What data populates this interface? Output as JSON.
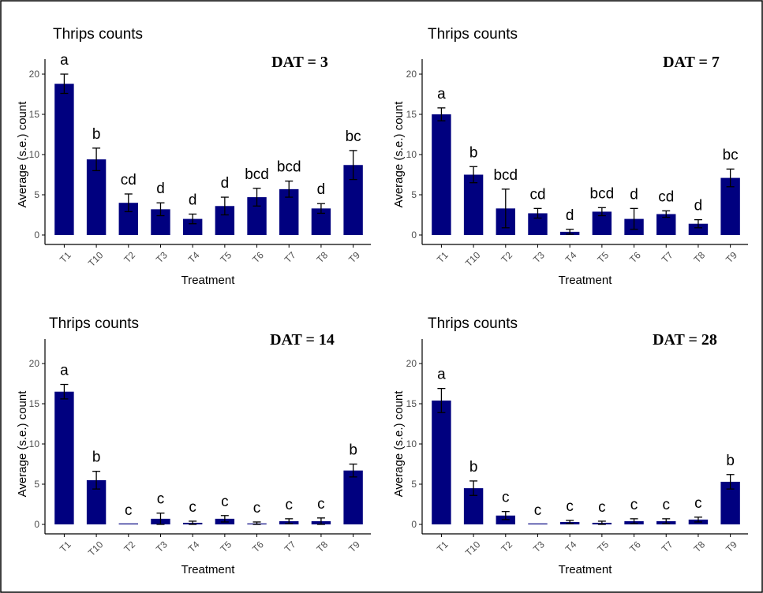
{
  "colors": {
    "bar": "#00007f",
    "axis": "#000000",
    "tick_text": "#4d4d4d",
    "frame": "#000000"
  },
  "chart_data": [
    {
      "type": "bar",
      "title": "Thrips counts",
      "panel_label": "DAT = 3",
      "xlabel": "Treatment",
      "ylabel": "Average (s.e.) count",
      "ylim": [
        0,
        22
      ],
      "yticks": [
        "0",
        "5",
        "10",
        "15",
        "20"
      ],
      "grid": false,
      "categories": [
        "T1",
        "T10",
        "T2",
        "T3",
        "T4",
        "T5",
        "T6",
        "T7",
        "T8",
        "T9"
      ],
      "values": [
        18.8,
        9.4,
        4.0,
        3.2,
        2.0,
        3.6,
        4.7,
        5.7,
        3.3,
        8.7
      ],
      "errors": [
        1.2,
        1.4,
        1.1,
        0.8,
        0.6,
        1.1,
        1.1,
        1.0,
        0.6,
        1.8
      ],
      "letters": [
        "a",
        "b",
        "cd",
        "d",
        "d",
        "d",
        "bcd",
        "bcd",
        "d",
        "bc"
      ]
    },
    {
      "type": "bar",
      "title": "Thrips counts",
      "panel_label": "DAT = 7",
      "xlabel": "Treatment",
      "ylabel": "Average (s.e.) count",
      "ylim": [
        0,
        22
      ],
      "yticks": [
        "0",
        "5",
        "10",
        "15",
        "20"
      ],
      "grid": false,
      "categories": [
        "T1",
        "T10",
        "T2",
        "T3",
        "T4",
        "T5",
        "T6",
        "T7",
        "T8",
        "T9"
      ],
      "values": [
        15.0,
        7.5,
        3.3,
        2.7,
        0.4,
        2.9,
        2.0,
        2.6,
        1.4,
        7.1
      ],
      "errors": [
        0.8,
        1.0,
        2.4,
        0.6,
        0.3,
        0.5,
        1.3,
        0.4,
        0.5,
        1.1
      ],
      "letters": [
        "a",
        "b",
        "bcd",
        "cd",
        "d",
        "bcd",
        "d",
        "cd",
        "d",
        "bc"
      ]
    },
    {
      "type": "bar",
      "title": "Thrips counts",
      "panel_label": "DAT = 14",
      "xlabel": "Treatment",
      "ylabel": "Average (s.e.) count",
      "ylim": [
        0,
        22
      ],
      "yticks": [
        "0",
        "5",
        "10",
        "15",
        "20"
      ],
      "grid": false,
      "categories": [
        "T1",
        "T10",
        "T2",
        "T3",
        "T4",
        "T5",
        "T6",
        "T7",
        "T8",
        "T9"
      ],
      "values": [
        16.5,
        5.5,
        0.0,
        0.7,
        0.2,
        0.7,
        0.1,
        0.4,
        0.4,
        6.7
      ],
      "errors": [
        0.9,
        1.1,
        0.0,
        0.7,
        0.2,
        0.4,
        0.2,
        0.3,
        0.4,
        0.8
      ],
      "letters": [
        "a",
        "b",
        "c",
        "c",
        "c",
        "c",
        "c",
        "c",
        "c",
        "b"
      ]
    },
    {
      "type": "bar",
      "title": "Thrips counts",
      "panel_label": "DAT = 28",
      "xlabel": "Treatment",
      "ylabel": "Average (s.e.) count",
      "ylim": [
        0,
        22
      ],
      "yticks": [
        "0",
        "5",
        "10",
        "15",
        "20"
      ],
      "grid": false,
      "categories": [
        "T1",
        "T10",
        "T2",
        "T3",
        "T4",
        "T5",
        "T6",
        "T7",
        "T8",
        "T9"
      ],
      "values": [
        15.4,
        4.5,
        1.1,
        0.0,
        0.3,
        0.2,
        0.4,
        0.4,
        0.6,
        5.3
      ],
      "errors": [
        1.5,
        0.9,
        0.5,
        0.0,
        0.2,
        0.2,
        0.3,
        0.3,
        0.3,
        0.9
      ],
      "letters": [
        "a",
        "b",
        "c",
        "c",
        "c",
        "c",
        "c",
        "c",
        "c",
        "b"
      ]
    }
  ]
}
